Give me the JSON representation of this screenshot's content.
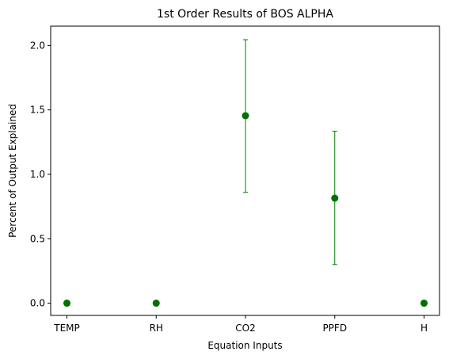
{
  "chart_data": {
    "type": "scatter",
    "title": "1st Order Results of BOS ALPHA",
    "xlabel": "Equation Inputs",
    "ylabel": "Percent of Output Explained",
    "categories": [
      "TEMP",
      "RH",
      "CO2",
      "PPFD",
      "H"
    ],
    "values": [
      0.0,
      0.0,
      1.455,
      0.815,
      0.0
    ],
    "error_low": [
      0.0,
      0.0,
      0.86,
      0.3,
      0.0
    ],
    "error_high": [
      0.0,
      0.0,
      2.045,
      1.335,
      0.0
    ],
    "ylim": [
      -0.095,
      2.15
    ],
    "yticks": [
      "0.0",
      "0.5",
      "1.0",
      "1.5",
      "2.0"
    ],
    "ytick_values": [
      0.0,
      0.5,
      1.0,
      1.5,
      2.0
    ],
    "grid": false,
    "legend": "none",
    "marker_color": "#007000",
    "error_color": "#008000"
  }
}
